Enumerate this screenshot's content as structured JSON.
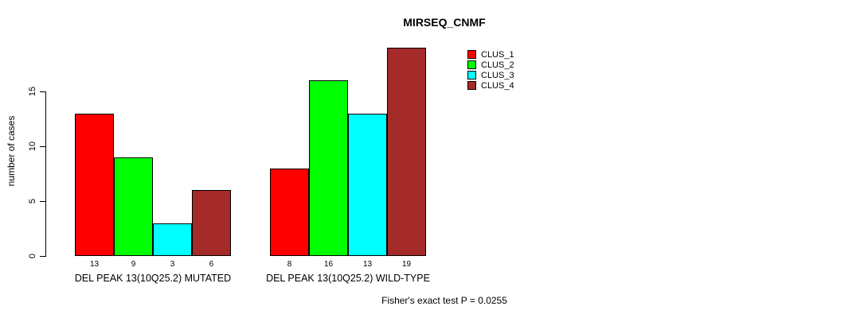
{
  "chart_data": {
    "type": "bar",
    "title": "MIRSEQ_CNMF",
    "xlabel": "",
    "ylabel": "number of cases",
    "ylim": [
      0,
      19
    ],
    "yticks": [
      0,
      5,
      10,
      15
    ],
    "grid": false,
    "legend_position": "top-right",
    "categories": [
      "DEL PEAK 13(10Q25.2) MUTATED",
      "DEL PEAK 13(10Q25.2) WILD-TYPE"
    ],
    "series": [
      {
        "name": "CLUS_1",
        "color": "#FF0000",
        "values": [
          13,
          8
        ]
      },
      {
        "name": "CLUS_2",
        "color": "#00FF00",
        "values": [
          9,
          16
        ]
      },
      {
        "name": "CLUS_3",
        "color": "#00FFFF",
        "values": [
          3,
          13
        ]
      },
      {
        "name": "CLUS_4",
        "color": "#A52A2A",
        "values": [
          6,
          19
        ]
      }
    ],
    "bar_value_labels": [
      [
        13,
        9,
        3,
        6
      ],
      [
        8,
        16,
        13,
        19
      ]
    ],
    "annotation": "Fisher's exact test P = 0.0255"
  },
  "colors": {
    "background": "#FFFFFF",
    "axis": "#000000",
    "text": "#000000"
  }
}
